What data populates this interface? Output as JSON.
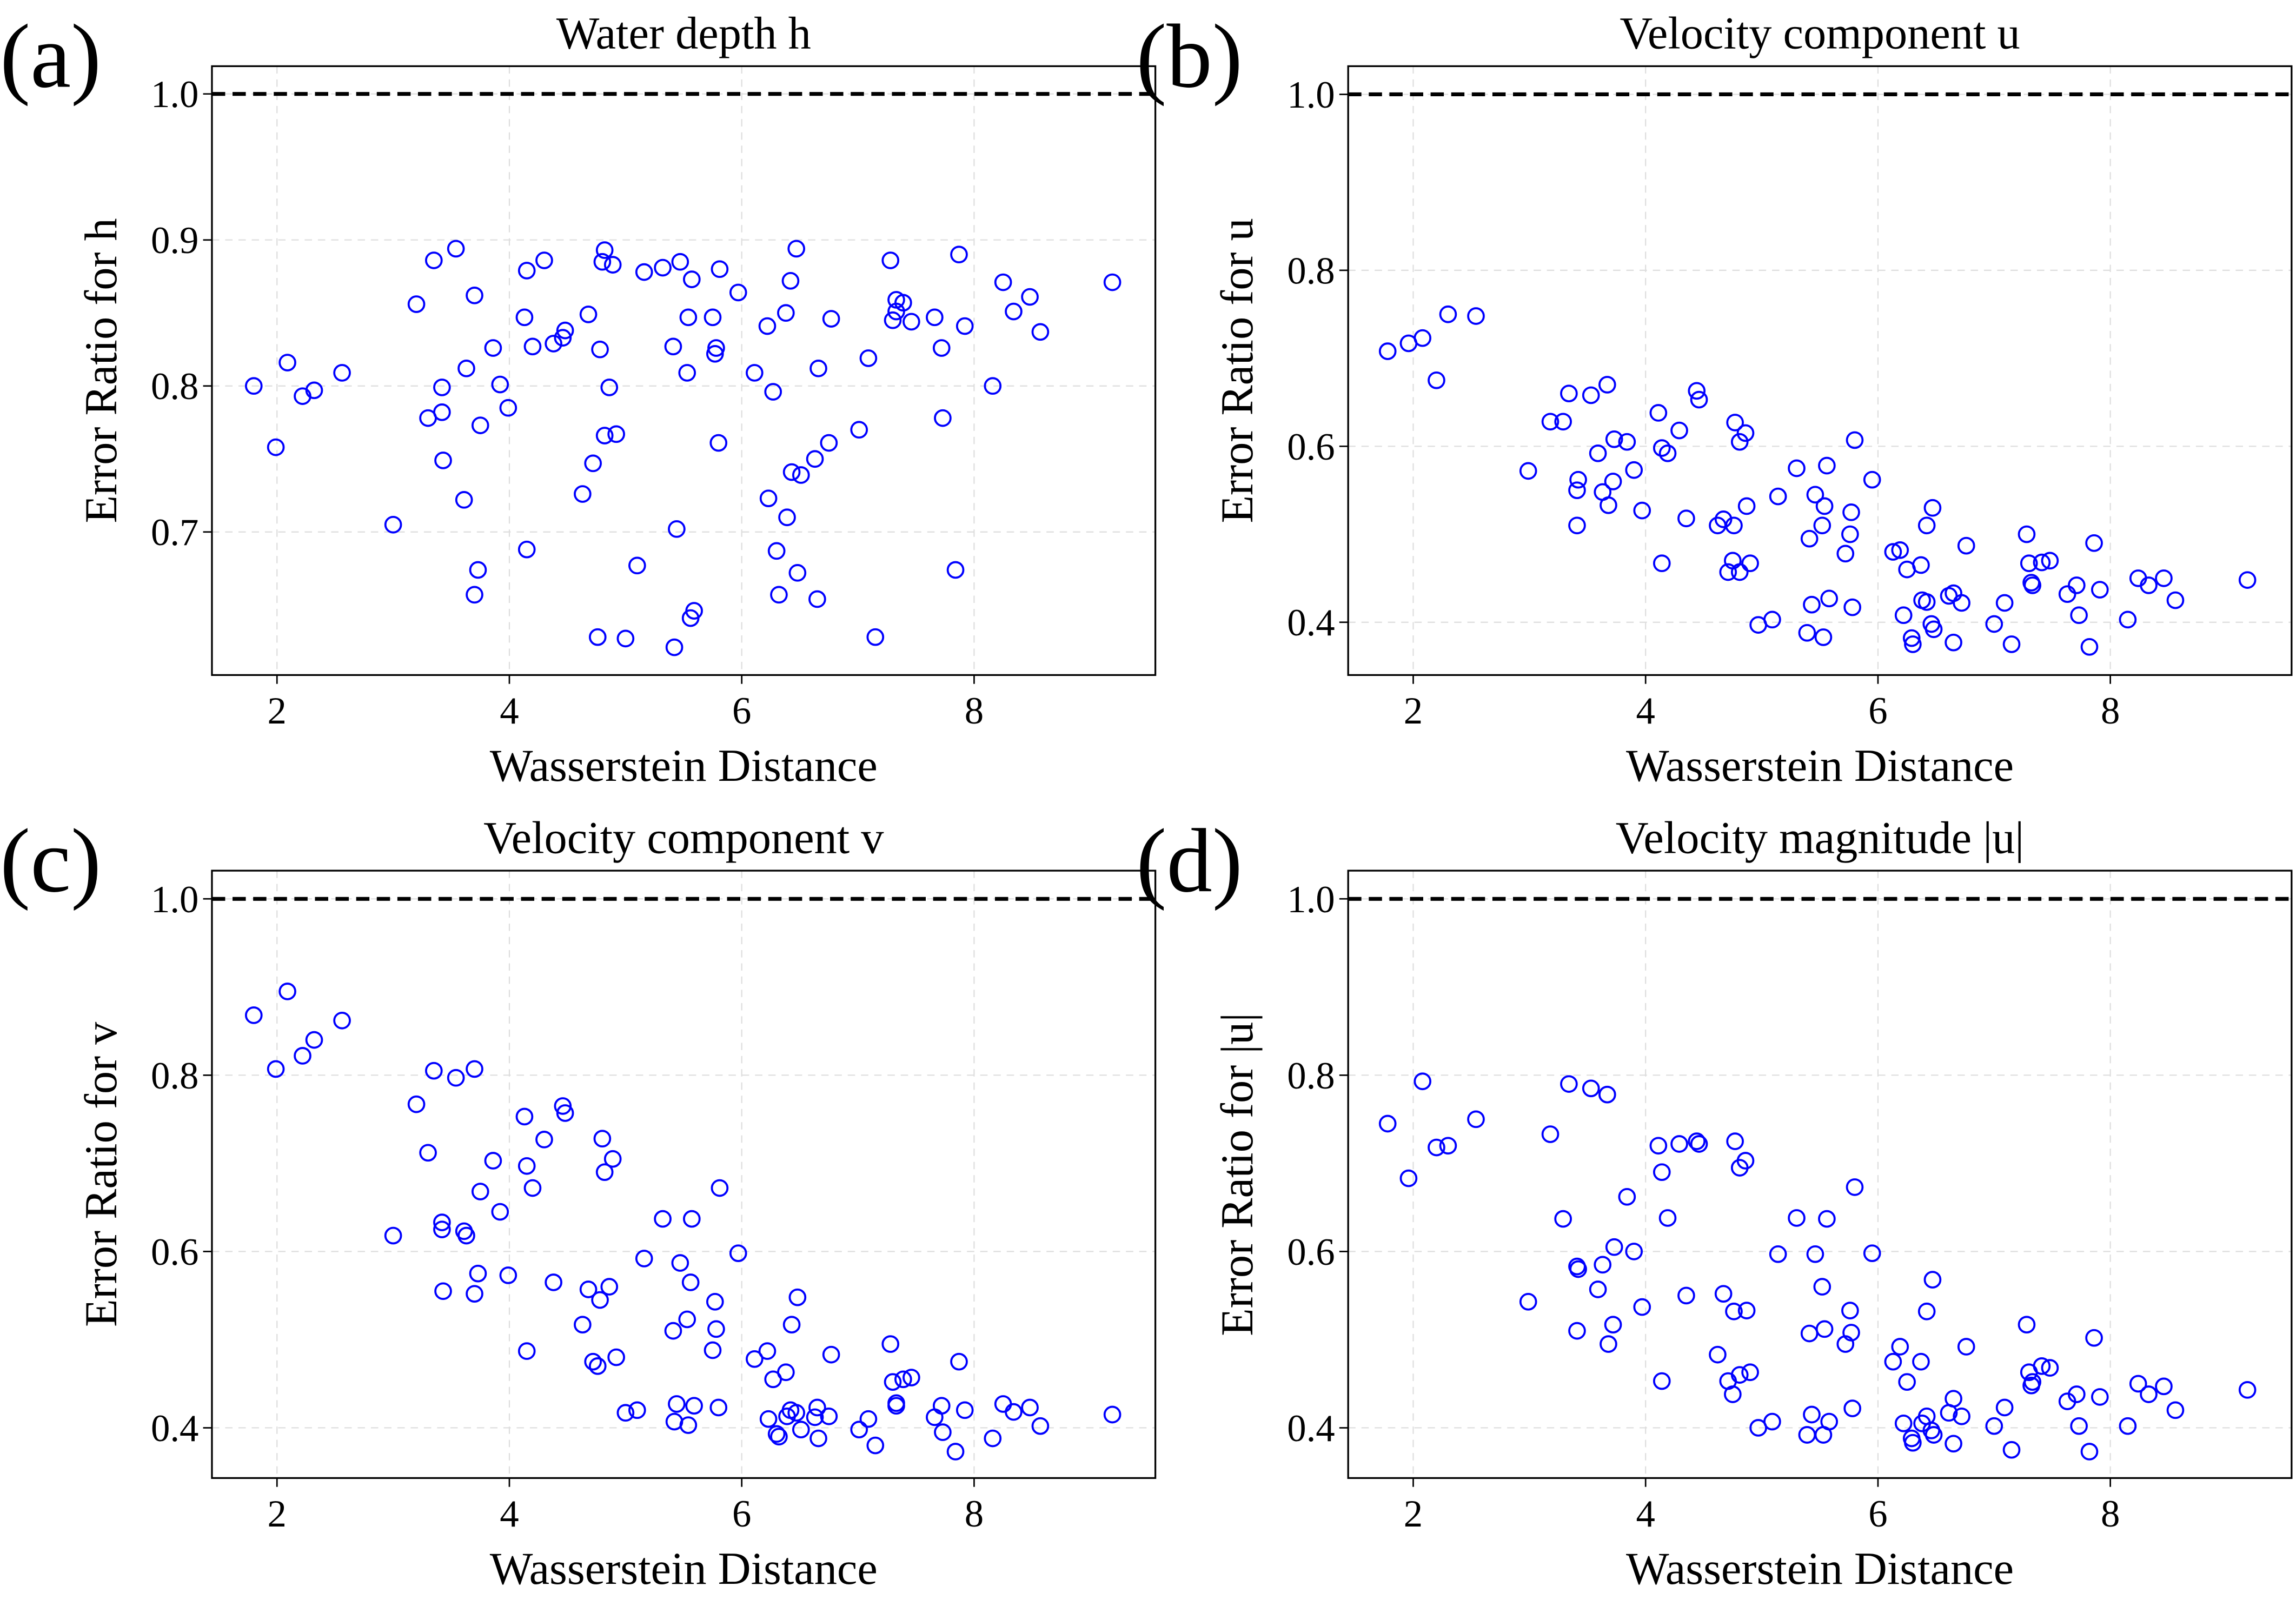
{
  "chart_data": [
    {
      "type": "scatter",
      "panel": "(a)",
      "title": "Water depth h",
      "xlabel": "Wasserstein Distance",
      "ylabel": "Error Ratio for h",
      "color": "blue",
      "grid": true,
      "hline": 1,
      "xlim": [
        1.44,
        9.56
      ],
      "ylim": [
        0.602,
        1.019
      ],
      "xticks": [
        2,
        4,
        6,
        8
      ],
      "yticks": [
        0.7,
        0.8,
        0.9,
        {
          "value": 1,
          "label": "1.0"
        }
      ],
      "x": [
        1.8,
        1.99,
        2.09,
        2.22,
        2.32,
        2.56,
        3.0,
        3.2,
        3.3,
        3.35,
        3.42,
        3.42,
        3.43,
        3.54,
        3.61,
        3.63,
        3.7,
        3.7,
        3.73,
        3.75,
        3.86,
        3.92,
        3.99,
        4.13,
        4.15,
        4.15,
        4.2,
        4.3,
        4.38,
        4.46,
        4.48,
        4.63,
        4.68,
        4.72,
        4.76,
        4.78,
        4.8,
        4.82,
        4.82,
        4.86,
        4.89,
        4.92,
        5.0,
        5.1,
        5.16,
        5.32,
        5.41,
        5.42,
        5.44,
        5.47,
        5.53,
        5.54,
        5.56,
        5.57,
        5.59,
        5.75,
        5.77,
        5.78,
        5.8,
        5.81,
        5.97,
        6.11,
        6.22,
        6.23,
        6.27,
        6.3,
        6.32,
        6.38,
        6.39,
        6.42,
        6.43,
        6.47,
        6.48,
        6.51,
        6.63,
        6.65,
        6.66,
        6.75,
        6.77,
        7.01,
        7.09,
        7.15,
        7.28,
        7.3,
        7.33,
        7.33,
        7.39,
        7.46,
        7.66,
        7.72,
        7.73,
        7.84,
        7.87,
        7.92,
        8.16,
        8.25,
        8.34,
        8.48,
        8.57,
        9.19
      ],
      "y": [
        0.8,
        0.758,
        0.816,
        0.793,
        0.797,
        0.809,
        0.705,
        0.856,
        0.778,
        0.886,
        0.799,
        0.782,
        0.749,
        0.894,
        0.722,
        0.812,
        0.862,
        0.657,
        0.674,
        0.773,
        0.826,
        0.801,
        0.785,
        0.847,
        0.879,
        0.688,
        0.827,
        0.886,
        0.829,
        0.833,
        0.838,
        0.726,
        0.849,
        0.747,
        0.628,
        0.825,
        0.885,
        0.893,
        0.766,
        0.799,
        0.883,
        0.767,
        0.627,
        0.677,
        0.878,
        0.881,
        0.827,
        0.621,
        0.702,
        0.885,
        0.809,
        0.847,
        0.641,
        0.873,
        0.646,
        0.847,
        0.822,
        0.826,
        0.761,
        0.88,
        0.864,
        0.809,
        0.841,
        0.723,
        0.796,
        0.687,
        0.657,
        0.85,
        0.71,
        0.872,
        0.741,
        0.894,
        0.672,
        0.739,
        0.75,
        0.654,
        0.812,
        0.761,
        0.846,
        0.77,
        0.819,
        0.628,
        0.886,
        0.845,
        0.859,
        0.851,
        0.857,
        0.844,
        0.847,
        0.826,
        0.778,
        0.674,
        0.89,
        0.841,
        0.8,
        0.871,
        0.851,
        0.861,
        0.837,
        0.871
      ]
    },
    {
      "type": "scatter",
      "panel": "(b)",
      "title": "Velocity component u",
      "xlabel": "Wasserstein Distance",
      "ylabel": "Error Ratio for u",
      "color": "blue",
      "grid": true,
      "hline": 1,
      "xlim": [
        1.44,
        9.56
      ],
      "ylim": [
        0.34,
        1.032
      ],
      "xticks": [
        2,
        4,
        6,
        8
      ],
      "yticks": [
        0.4,
        0.6,
        0.8,
        {
          "value": 1,
          "label": "1.0"
        }
      ],
      "x": [
        1.78,
        1.96,
        2.08,
        2.2,
        2.3,
        2.54,
        2.99,
        3.18,
        3.29,
        3.34,
        3.41,
        3.41,
        3.42,
        3.53,
        3.59,
        3.63,
        3.67,
        3.68,
        3.72,
        3.73,
        3.84,
        3.9,
        3.97,
        4.11,
        4.14,
        4.14,
        4.19,
        4.29,
        4.35,
        4.44,
        4.46,
        4.62,
        4.67,
        4.71,
        4.75,
        4.76,
        4.77,
        4.81,
        4.81,
        4.86,
        4.87,
        4.9,
        4.97,
        5.09,
        5.14,
        5.3,
        5.39,
        5.41,
        5.43,
        5.46,
        5.52,
        5.53,
        5.54,
        5.56,
        5.58,
        5.72,
        5.76,
        5.77,
        5.78,
        5.8,
        5.95,
        6.13,
        6.19,
        6.22,
        6.25,
        6.29,
        6.3,
        6.37,
        6.38,
        6.42,
        6.42,
        6.46,
        6.47,
        6.48,
        6.61,
        6.65,
        6.65,
        6.72,
        6.76,
        7.0,
        7.09,
        7.15,
        7.28,
        7.3,
        7.32,
        7.33,
        7.41,
        7.48,
        7.63,
        7.71,
        7.73,
        7.82,
        7.86,
        7.91,
        8.15,
        8.24,
        8.33,
        8.46,
        8.56,
        9.18
      ],
      "y": [
        0.708,
        0.717,
        0.723,
        0.675,
        0.75,
        0.748,
        0.572,
        0.628,
        0.628,
        0.66,
        0.51,
        0.55,
        0.562,
        0.658,
        0.592,
        0.548,
        0.67,
        0.533,
        0.56,
        0.608,
        0.605,
        0.573,
        0.527,
        0.638,
        0.467,
        0.598,
        0.592,
        0.618,
        0.518,
        0.663,
        0.653,
        0.51,
        0.517,
        0.457,
        0.47,
        0.51,
        0.627,
        0.457,
        0.605,
        0.615,
        0.532,
        0.467,
        0.397,
        0.403,
        0.543,
        0.575,
        0.388,
        0.495,
        0.42,
        0.545,
        0.51,
        0.383,
        0.532,
        0.578,
        0.427,
        0.478,
        0.5,
        0.525,
        0.417,
        0.607,
        0.562,
        0.48,
        0.482,
        0.408,
        0.46,
        0.382,
        0.375,
        0.465,
        0.425,
        0.423,
        0.51,
        0.398,
        0.53,
        0.392,
        0.43,
        0.433,
        0.377,
        0.422,
        0.487,
        0.398,
        0.422,
        0.375,
        0.5,
        0.467,
        0.445,
        0.442,
        0.468,
        0.47,
        0.432,
        0.442,
        0.408,
        0.372,
        0.49,
        0.437,
        0.403,
        0.45,
        0.442,
        0.45,
        0.425,
        0.448
      ]
    },
    {
      "type": "scatter",
      "panel": "(c)",
      "title": "Velocity component v",
      "xlabel": "Wasserstein Distance",
      "ylabel": "Error Ratio for v",
      "color": "blue",
      "grid": true,
      "hline": 1,
      "xlim": [
        1.44,
        9.56
      ],
      "ylim": [
        0.343,
        1.032
      ],
      "xticks": [
        2,
        4,
        6,
        8
      ],
      "yticks": [
        0.4,
        0.6,
        0.8,
        {
          "value": 1,
          "label": "1.0"
        }
      ],
      "x": [
        1.8,
        1.99,
        2.09,
        2.22,
        2.32,
        2.56,
        3.0,
        3.2,
        3.3,
        3.35,
        3.42,
        3.42,
        3.43,
        3.54,
        3.61,
        3.63,
        3.7,
        3.7,
        3.73,
        3.75,
        3.86,
        3.92,
        3.99,
        4.13,
        4.15,
        4.15,
        4.2,
        4.3,
        4.38,
        4.46,
        4.48,
        4.63,
        4.68,
        4.72,
        4.76,
        4.78,
        4.8,
        4.82,
        4.86,
        4.89,
        4.92,
        5.0,
        5.1,
        5.16,
        5.32,
        5.41,
        5.42,
        5.44,
        5.47,
        5.53,
        5.54,
        5.56,
        5.57,
        5.59,
        5.75,
        5.77,
        5.78,
        5.8,
        5.81,
        5.97,
        6.11,
        6.22,
        6.23,
        6.27,
        6.3,
        6.32,
        6.38,
        6.39,
        6.42,
        6.43,
        6.47,
        6.48,
        6.51,
        6.63,
        6.65,
        6.66,
        6.75,
        6.77,
        7.01,
        7.09,
        7.15,
        7.28,
        7.3,
        7.33,
        7.33,
        7.39,
        7.46,
        7.66,
        7.72,
        7.73,
        7.84,
        7.87,
        7.92,
        8.16,
        8.25,
        8.34,
        8.48,
        8.57,
        9.19
      ],
      "y": [
        0.868,
        0.807,
        0.895,
        0.822,
        0.84,
        0.862,
        0.618,
        0.767,
        0.712,
        0.805,
        0.633,
        0.625,
        0.555,
        0.797,
        0.623,
        0.618,
        0.807,
        0.552,
        0.575,
        0.668,
        0.703,
        0.645,
        0.573,
        0.753,
        0.487,
        0.697,
        0.672,
        0.727,
        0.565,
        0.765,
        0.757,
        0.517,
        0.557,
        0.475,
        0.47,
        0.545,
        0.728,
        0.69,
        0.56,
        0.705,
        0.48,
        0.417,
        0.42,
        0.592,
        0.637,
        0.51,
        0.407,
        0.427,
        0.587,
        0.523,
        0.403,
        0.565,
        0.637,
        0.425,
        0.488,
        0.543,
        0.512,
        0.423,
        0.672,
        0.598,
        0.478,
        0.487,
        0.41,
        0.455,
        0.393,
        0.39,
        0.463,
        0.413,
        0.42,
        0.517,
        0.417,
        0.548,
        0.398,
        0.412,
        0.423,
        0.388,
        0.413,
        0.483,
        0.398,
        0.41,
        0.38,
        0.495,
        0.452,
        0.428,
        0.425,
        0.455,
        0.457,
        0.412,
        0.425,
        0.395,
        0.373,
        0.475,
        0.42,
        0.388,
        0.427,
        0.418,
        0.423,
        0.402,
        0.415
      ]
    },
    {
      "type": "scatter",
      "panel": "(d)",
      "title": "Velocity magnitude |u|",
      "xlabel": "Wasserstein Distance",
      "ylabel": "Error Ratio for |u|",
      "color": "blue",
      "grid": true,
      "hline": 1,
      "xlim": [
        1.44,
        9.56
      ],
      "ylim": [
        0.343,
        1.032
      ],
      "xticks": [
        2,
        4,
        6,
        8
      ],
      "yticks": [
        0.4,
        0.6,
        0.8,
        {
          "value": 1,
          "label": "1.0"
        }
      ],
      "x": [
        1.78,
        1.96,
        2.08,
        2.2,
        2.3,
        2.54,
        2.99,
        3.18,
        3.29,
        3.34,
        3.41,
        3.41,
        3.42,
        3.53,
        3.59,
        3.63,
        3.67,
        3.68,
        3.72,
        3.73,
        3.84,
        3.9,
        3.97,
        4.11,
        4.14,
        4.14,
        4.19,
        4.29,
        4.35,
        4.44,
        4.46,
        4.62,
        4.67,
        4.71,
        4.75,
        4.76,
        4.77,
        4.81,
        4.81,
        4.86,
        4.87,
        4.9,
        4.97,
        5.09,
        5.14,
        5.3,
        5.39,
        5.41,
        5.43,
        5.46,
        5.52,
        5.53,
        5.54,
        5.56,
        5.58,
        5.72,
        5.76,
        5.77,
        5.78,
        5.8,
        5.95,
        6.13,
        6.19,
        6.22,
        6.25,
        6.29,
        6.3,
        6.37,
        6.38,
        6.42,
        6.42,
        6.46,
        6.47,
        6.48,
        6.61,
        6.65,
        6.65,
        6.72,
        6.76,
        7.0,
        7.09,
        7.15,
        7.28,
        7.3,
        7.32,
        7.33,
        7.41,
        7.48,
        7.63,
        7.71,
        7.73,
        7.82,
        7.86,
        7.91,
        8.15,
        8.24,
        8.33,
        8.46,
        8.56,
        9.18
      ],
      "y": [
        0.745,
        0.683,
        0.793,
        0.718,
        0.72,
        0.75,
        0.543,
        0.733,
        0.637,
        0.79,
        0.51,
        0.583,
        0.58,
        0.785,
        0.557,
        0.585,
        0.778,
        0.495,
        0.517,
        0.605,
        0.662,
        0.6,
        0.537,
        0.72,
        0.453,
        0.69,
        0.638,
        0.722,
        0.55,
        0.725,
        0.722,
        0.483,
        0.552,
        0.453,
        0.438,
        0.532,
        0.725,
        0.46,
        0.695,
        0.703,
        0.533,
        0.463,
        0.4,
        0.407,
        0.597,
        0.638,
        0.392,
        0.507,
        0.415,
        0.597,
        0.56,
        0.392,
        0.512,
        0.637,
        0.407,
        0.495,
        0.533,
        0.508,
        0.422,
        0.673,
        0.598,
        0.475,
        0.492,
        0.405,
        0.452,
        0.388,
        0.383,
        0.475,
        0.405,
        0.413,
        0.532,
        0.397,
        0.568,
        0.392,
        0.417,
        0.433,
        0.382,
        0.413,
        0.492,
        0.402,
        0.423,
        0.375,
        0.517,
        0.463,
        0.448,
        0.452,
        0.47,
        0.468,
        0.43,
        0.438,
        0.402,
        0.373,
        0.502,
        0.435,
        0.402,
        0.45,
        0.438,
        0.447,
        0.42,
        0.443
      ]
    }
  ]
}
